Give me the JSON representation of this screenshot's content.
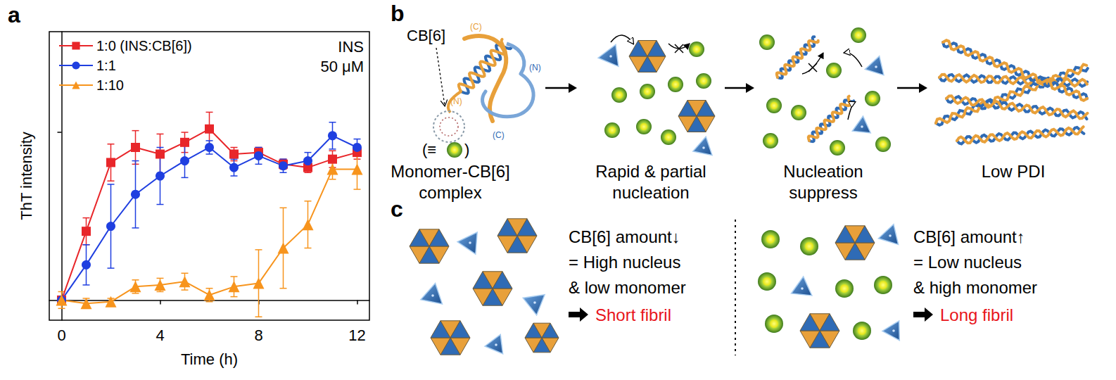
{
  "chart_data": {
    "type": "line",
    "panel_label": "a",
    "x_label": "Time (h)",
    "y_label": "ThT intensity",
    "annotations": [
      "INS",
      "50 μM"
    ],
    "x": [
      0,
      1,
      2,
      3,
      4,
      5,
      6,
      7,
      8,
      9,
      10,
      11,
      12
    ],
    "xlim": [
      -0.5,
      12.5
    ],
    "xticks": [
      0,
      4,
      8,
      12
    ],
    "ylim": [
      -0.12,
      1.6
    ],
    "yticks": [
      0,
      1
    ],
    "tick_labels": "x",
    "grid": false,
    "legend": "upper left",
    "series": [
      {
        "name": "1:0 (INS:CB[6])",
        "color": "#e8262a",
        "marker": "square",
        "values": [
          0,
          0.41,
          0.82,
          0.91,
          0.87,
          0.94,
          1.02,
          0.87,
          0.88,
          0.81,
          0.79,
          0.84,
          0.88
        ],
        "errors": [
          0,
          0.08,
          0.11,
          0.1,
          0.12,
          0.06,
          0.1,
          0.04,
          0.03,
          0.03,
          0.03,
          0.05,
          0.04
        ]
      },
      {
        "name": "1:1",
        "color": "#1f3fe0",
        "marker": "circle",
        "values": [
          0,
          0.21,
          0.44,
          0.63,
          0.74,
          0.83,
          0.91,
          0.79,
          0.86,
          0.8,
          0.83,
          0.98,
          0.91
        ],
        "errors": [
          0,
          0.12,
          0.25,
          0.2,
          0.17,
          0.1,
          0.04,
          0.05,
          0.05,
          0.04,
          0.05,
          0.08,
          0.05
        ]
      },
      {
        "name": "1:10",
        "color": "#f7941d",
        "marker": "triangle",
        "values": [
          0,
          -0.02,
          -0.01,
          0.08,
          0.09,
          0.11,
          0.03,
          0.08,
          0.1,
          0.31,
          0.45,
          0.78,
          0.78
        ],
        "errors": [
          0.05,
          0.03,
          0.02,
          0.04,
          0.04,
          0.05,
          0.04,
          0.06,
          0.2,
          0.24,
          0.14,
          0.06,
          0.12
        ]
      }
    ]
  },
  "diagram": {
    "panel_b": {
      "label": "b",
      "cb6_label": "CB[6]",
      "terminus_labels": [
        "(C)",
        "(N)",
        "(N)",
        "(C)"
      ],
      "equivalence": [
        "(≡",
        ")"
      ],
      "steps": [
        {
          "lines": [
            "Monomer-CB[6]",
            "complex"
          ]
        },
        {
          "lines": [
            "Rapid & partial",
            "nucleation"
          ]
        },
        {
          "lines": [
            "Nucleation",
            "suppress"
          ]
        },
        {
          "lines": [
            "Low PDI"
          ]
        }
      ]
    },
    "panel_c": {
      "label": "c",
      "cases": [
        {
          "lines": [
            "CB[6] amount↓",
            "= High nucleus",
            "& low monomer"
          ],
          "result": "Short fibril"
        },
        {
          "lines": [
            "CB[6] amount↑",
            "= Low nucleus",
            "& high monomer"
          ],
          "result": "Long fibril"
        }
      ]
    }
  }
}
